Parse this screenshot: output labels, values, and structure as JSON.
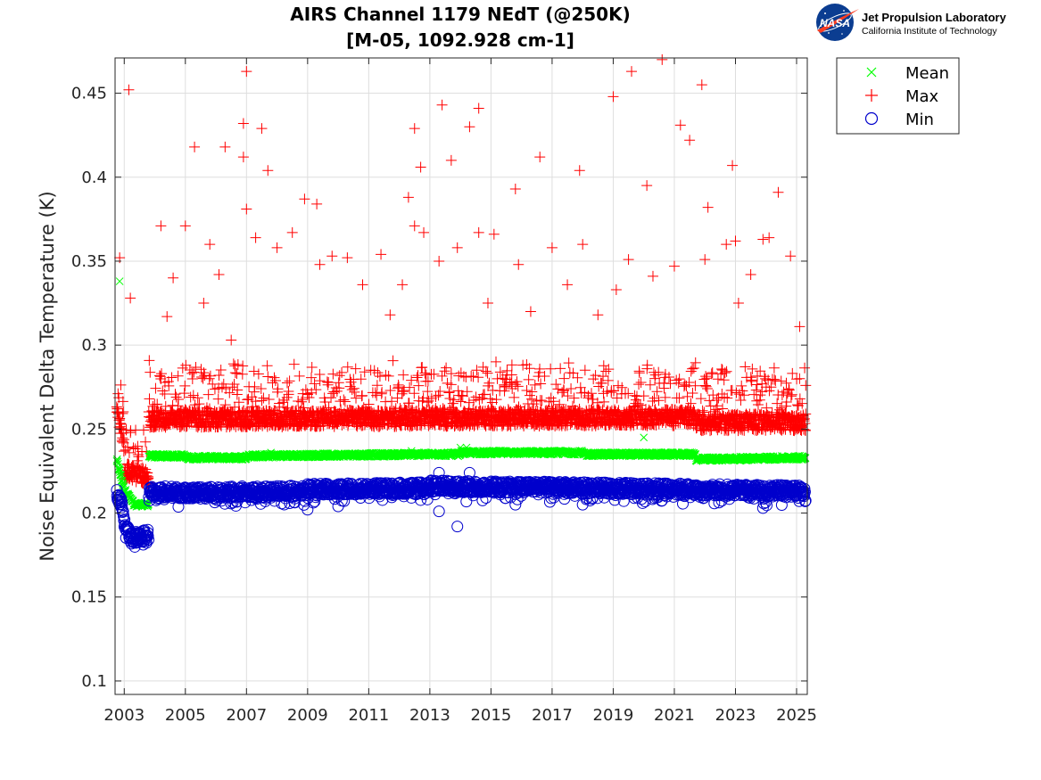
{
  "chart_data": {
    "type": "scatter",
    "title_line1": "AIRS Channel 1179 NEdT (@250K)",
    "title_line2": "[M-05, 1092.928 cm-1]",
    "xlabel": "",
    "ylabel": "Noise Equivalent Delta Temperature (K)",
    "xlim": [
      2002.7,
      2025.35
    ],
    "ylim": [
      0.092,
      0.471
    ],
    "xticks": [
      2003,
      2005,
      2007,
      2009,
      2011,
      2013,
      2015,
      2017,
      2019,
      2021,
      2023,
      2025
    ],
    "xtick_labels": [
      "2003",
      "2005",
      "2007",
      "2009",
      "2011",
      "2013",
      "2015",
      "2017",
      "2019",
      "2021",
      "2023",
      "2025"
    ],
    "yticks": [
      0.1,
      0.15,
      0.2,
      0.25,
      0.3,
      0.35,
      0.4,
      0.45
    ],
    "ytick_labels": [
      "0.1",
      "0.15",
      "0.2",
      "0.25",
      "0.3",
      "0.35",
      "0.4",
      "0.45"
    ],
    "grid": true,
    "legend_position": "outside-top-right",
    "series": [
      {
        "name": "Mean",
        "marker": "x",
        "color": "#00ff00",
        "baseline_segments": [
          {
            "x": [
              2002.75,
              2003.0
            ],
            "y": [
              0.232,
              0.214
            ]
          },
          {
            "x": [
              2003.0,
              2003.3
            ],
            "y": [
              0.214,
              0.206
            ]
          },
          {
            "x": [
              2003.3,
              2003.8
            ],
            "y": [
              0.205,
              0.205
            ]
          },
          {
            "x": [
              2003.8,
              2005.0
            ],
            "y": [
              0.234,
              0.234
            ]
          },
          {
            "x": [
              2005.0,
              2007.0
            ],
            "y": [
              0.233,
              0.233
            ]
          },
          {
            "x": [
              2007.0,
              2013.0
            ],
            "y": [
              0.234,
              0.235
            ]
          },
          {
            "x": [
              2013.0,
              2014.0
            ],
            "y": [
              0.235,
              0.235
            ]
          },
          {
            "x": [
              2014.0,
              2018.0
            ],
            "y": [
              0.236,
              0.236
            ]
          },
          {
            "x": [
              2018.0,
              2021.7
            ],
            "y": [
              0.235,
              0.235
            ]
          },
          {
            "x": [
              2021.7,
              2025.3
            ],
            "y": [
              0.232,
              0.233
            ]
          }
        ],
        "outliers": [
          [
            2002.85,
            0.338
          ],
          [
            2007.8,
            0.236
          ],
          [
            2012.4,
            0.237
          ],
          [
            2014.0,
            0.239
          ],
          [
            2014.2,
            0.239
          ],
          [
            2020.0,
            0.245
          ]
        ]
      },
      {
        "name": "Max",
        "marker": "+",
        "color": "#ff0000",
        "baseline_segments": [
          {
            "x": [
              2002.75,
              2003.0
            ],
            "y": [
              0.262,
              0.24
            ]
          },
          {
            "x": [
              2003.0,
              2003.8
            ],
            "y": [
              0.225,
              0.222
            ]
          },
          {
            "x": [
              2003.8,
              2021.7
            ],
            "y": [
              0.256,
              0.257
            ]
          },
          {
            "x": [
              2021.7,
              2025.3
            ],
            "y": [
              0.254,
              0.254
            ]
          }
        ],
        "outliers": [
          [
            2002.85,
            0.352
          ],
          [
            2003.15,
            0.452
          ],
          [
            2003.2,
            0.328
          ],
          [
            2004.2,
            0.371
          ],
          [
            2004.4,
            0.317
          ],
          [
            2004.6,
            0.34
          ],
          [
            2005.0,
            0.371
          ],
          [
            2005.3,
            0.418
          ],
          [
            2005.6,
            0.325
          ],
          [
            2005.8,
            0.36
          ],
          [
            2006.1,
            0.342
          ],
          [
            2006.3,
            0.418
          ],
          [
            2006.5,
            0.303
          ],
          [
            2006.9,
            0.432
          ],
          [
            2006.9,
            0.412
          ],
          [
            2007.0,
            0.381
          ],
          [
            2007.0,
            0.463
          ],
          [
            2007.3,
            0.364
          ],
          [
            2007.5,
            0.429
          ],
          [
            2007.7,
            0.404
          ],
          [
            2008.0,
            0.358
          ],
          [
            2008.5,
            0.367
          ],
          [
            2008.9,
            0.387
          ],
          [
            2009.3,
            0.384
          ],
          [
            2009.4,
            0.348
          ],
          [
            2009.8,
            0.353
          ],
          [
            2010.3,
            0.352
          ],
          [
            2010.8,
            0.336
          ],
          [
            2011.4,
            0.354
          ],
          [
            2011.7,
            0.318
          ],
          [
            2012.1,
            0.336
          ],
          [
            2012.3,
            0.388
          ],
          [
            2012.5,
            0.429
          ],
          [
            2012.5,
            0.371
          ],
          [
            2012.7,
            0.406
          ],
          [
            2012.8,
            0.367
          ],
          [
            2013.3,
            0.35
          ],
          [
            2013.4,
            0.443
          ],
          [
            2013.7,
            0.41
          ],
          [
            2013.9,
            0.358
          ],
          [
            2014.3,
            0.43
          ],
          [
            2014.6,
            0.441
          ],
          [
            2014.6,
            0.367
          ],
          [
            2014.9,
            0.325
          ],
          [
            2015.1,
            0.366
          ],
          [
            2015.8,
            0.393
          ],
          [
            2015.9,
            0.348
          ],
          [
            2016.3,
            0.32
          ],
          [
            2016.6,
            0.412
          ],
          [
            2017.0,
            0.358
          ],
          [
            2017.5,
            0.336
          ],
          [
            2017.9,
            0.404
          ],
          [
            2018.0,
            0.36
          ],
          [
            2018.5,
            0.318
          ],
          [
            2019.0,
            0.448
          ],
          [
            2019.1,
            0.333
          ],
          [
            2019.5,
            0.351
          ],
          [
            2019.6,
            0.463
          ],
          [
            2020.1,
            0.395
          ],
          [
            2020.3,
            0.341
          ],
          [
            2020.6,
            0.47
          ],
          [
            2021.0,
            0.347
          ],
          [
            2021.2,
            0.431
          ],
          [
            2021.5,
            0.422
          ],
          [
            2021.9,
            0.455
          ],
          [
            2022.0,
            0.351
          ],
          [
            2022.1,
            0.382
          ],
          [
            2022.7,
            0.36
          ],
          [
            2022.9,
            0.407
          ],
          [
            2023.0,
            0.362
          ],
          [
            2023.1,
            0.325
          ],
          [
            2023.5,
            0.342
          ],
          [
            2023.9,
            0.363
          ],
          [
            2024.1,
            0.364
          ],
          [
            2024.4,
            0.391
          ],
          [
            2024.8,
            0.353
          ],
          [
            2025.1,
            0.311
          ],
          [
            2025.3,
            0.276
          ]
        ]
      },
      {
        "name": "Min",
        "marker": "o",
        "color": "#0000cc",
        "baseline_segments": [
          {
            "x": [
              2002.75,
              2003.0
            ],
            "y": [
              0.213,
              0.2
            ]
          },
          {
            "x": [
              2003.0,
              2003.25
            ],
            "y": [
              0.195,
              0.184
            ]
          },
          {
            "x": [
              2003.25,
              2003.8
            ],
            "y": [
              0.185,
              0.187
            ]
          },
          {
            "x": [
              2003.8,
              2005.0
            ],
            "y": [
              0.213,
              0.212
            ]
          },
          {
            "x": [
              2005.0,
              2009.0
            ],
            "y": [
              0.212,
              0.213
            ]
          },
          {
            "x": [
              2009.0,
              2013.0
            ],
            "y": [
              0.214,
              0.215
            ]
          },
          {
            "x": [
              2013.0,
              2018.0
            ],
            "y": [
              0.216,
              0.215
            ]
          },
          {
            "x": [
              2018.0,
              2025.3
            ],
            "y": [
              0.215,
              0.213
            ]
          }
        ],
        "outliers": [
          [
            2013.3,
            0.224
          ],
          [
            2013.3,
            0.201
          ],
          [
            2013.9,
            0.192
          ],
          [
            2014.3,
            0.224
          ],
          [
            2015.8,
            0.205
          ],
          [
            2018.0,
            0.205
          ],
          [
            2023.9,
            0.203
          ],
          [
            2009.0,
            0.202
          ],
          [
            2010.0,
            0.204
          ]
        ]
      }
    ]
  },
  "logo": {
    "org_name": "Jet Propulsion Laboratory",
    "org_sub": "California Institute of Technology",
    "badge_text": "NASA"
  }
}
